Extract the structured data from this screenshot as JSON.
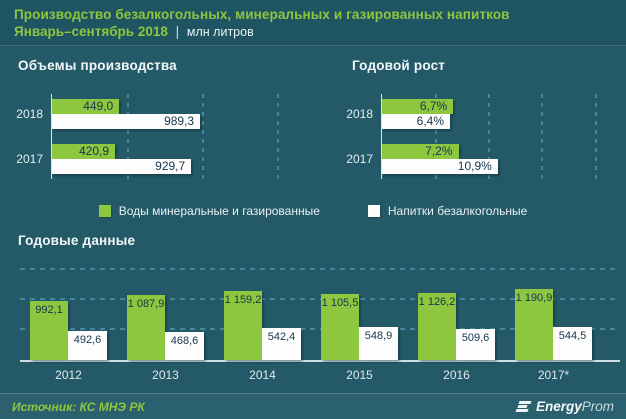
{
  "header": {
    "title_line1": "Производство безалкогольных, минеральных и газированных напитков",
    "title_line2": "Январь–сентябрь 2018",
    "separator": "|",
    "units": "млн литров"
  },
  "legend": [
    {
      "label": "Воды минеральные и газированные",
      "color": "#8dc63f"
    },
    {
      "label": "Напитки безалкогольные",
      "color": "#ffffff"
    }
  ],
  "footer": {
    "source": "Источник: КС МНЭ РК",
    "logo_bold": "Energy",
    "logo_light": "Prom"
  },
  "chart_data": [
    {
      "type": "bar",
      "orientation": "horizontal",
      "title": "Объемы производства",
      "unit": "млн литров",
      "categories": [
        "2018",
        "2017"
      ],
      "series": [
        {
          "name": "Воды минеральные и газированные",
          "color": "#8dc63f",
          "values": [
            449.0,
            420.9
          ],
          "labels": [
            "449,0",
            "420,9"
          ]
        },
        {
          "name": "Напитки безалкогольные",
          "color": "#ffffff",
          "values": [
            989.3,
            929.7
          ],
          "labels": [
            "989,3",
            "929,7"
          ]
        }
      ],
      "xlim": [
        0,
        1730
      ],
      "gridlines": [
        500,
        1000,
        1500
      ],
      "grid": "dashed-vertical",
      "legend_position": "below"
    },
    {
      "type": "bar",
      "orientation": "horizontal",
      "title": "Годовой рост",
      "unit": "%",
      "categories": [
        "2018",
        "2017"
      ],
      "series": [
        {
          "name": "Воды минеральные и газированные",
          "color": "#8dc63f",
          "values": [
            6.7,
            7.2
          ],
          "labels": [
            "6,7%",
            "7,2%"
          ]
        },
        {
          "name": "Напитки безалкогольные",
          "color": "#ffffff",
          "values": [
            6.4,
            10.9
          ],
          "labels": [
            "6,4%",
            "10,9%"
          ]
        }
      ],
      "xlim": [
        0,
        22.4
      ],
      "gridlines": [
        5,
        10,
        15,
        20
      ],
      "grid": "dashed-vertical",
      "legend_position": "below"
    },
    {
      "type": "bar",
      "orientation": "vertical",
      "title": "Годовые данные",
      "unit": "млн литров",
      "categories": [
        "2012",
        "2013",
        "2014",
        "2015",
        "2016",
        "2017*"
      ],
      "series": [
        {
          "name": "Воды минеральные и газированные",
          "color": "#8dc63f",
          "values": [
            992.1,
            1087.9,
            1159.2,
            1105.5,
            1126.2,
            1190.9
          ],
          "labels": [
            "992,1",
            "1 087,9",
            "1 159,2",
            "1 105,5",
            "1 126,2",
            "1 190,9"
          ]
        },
        {
          "name": "Напитки безалкогольные",
          "color": "#ffffff",
          "values": [
            492.6,
            468.6,
            542.4,
            548.9,
            509.6,
            544.5
          ],
          "labels": [
            "492,6",
            "468,6",
            "542,4",
            "548,9",
            "509,6",
            "544,5"
          ]
        }
      ],
      "ylim": [
        0,
        1870
      ],
      "gridlines": [
        500,
        1000,
        1500
      ],
      "grid": "dashed-horizontal"
    }
  ]
}
